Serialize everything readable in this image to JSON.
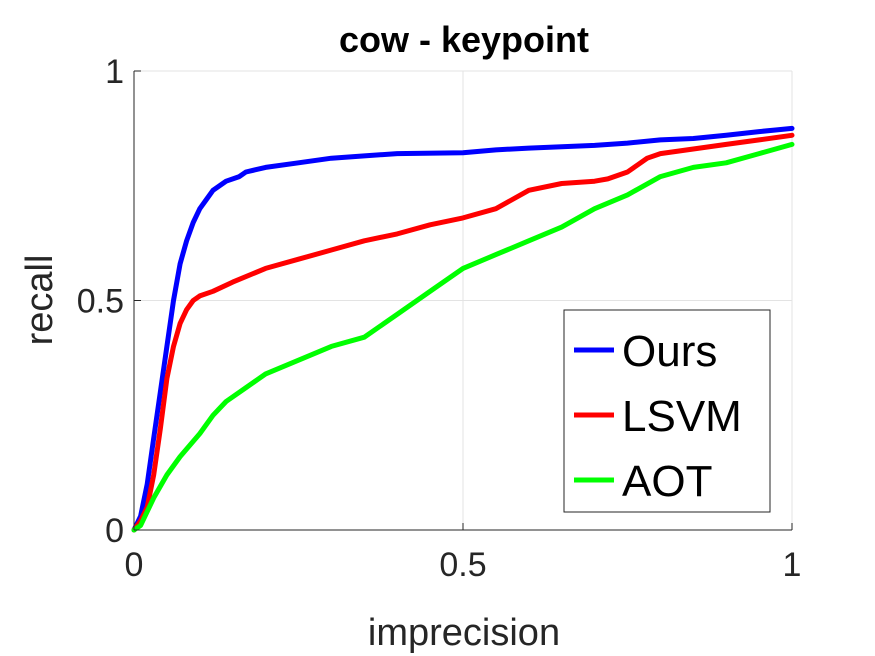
{
  "chart_data": {
    "type": "line",
    "title": "cow - keypoint",
    "xlabel": "imprecision",
    "ylabel": "recall",
    "xlim": [
      0,
      1
    ],
    "ylim": [
      0,
      1
    ],
    "xticks": [
      "0",
      "0.5",
      "1"
    ],
    "yticks": [
      "0",
      "0.5",
      "1"
    ],
    "grid": true,
    "legend_position": "bottom-right",
    "series": [
      {
        "name": "Ours",
        "color": "#0000ff",
        "points": [
          [
            0,
            0
          ],
          [
            0.01,
            0.03
          ],
          [
            0.02,
            0.1
          ],
          [
            0.03,
            0.2
          ],
          [
            0.04,
            0.3
          ],
          [
            0.05,
            0.4
          ],
          [
            0.06,
            0.5
          ],
          [
            0.07,
            0.58
          ],
          [
            0.08,
            0.63
          ],
          [
            0.09,
            0.67
          ],
          [
            0.1,
            0.7
          ],
          [
            0.11,
            0.72
          ],
          [
            0.12,
            0.74
          ],
          [
            0.14,
            0.76
          ],
          [
            0.16,
            0.77
          ],
          [
            0.17,
            0.78
          ],
          [
            0.2,
            0.79
          ],
          [
            0.25,
            0.8
          ],
          [
            0.3,
            0.81
          ],
          [
            0.35,
            0.815
          ],
          [
            0.4,
            0.82
          ],
          [
            0.5,
            0.822
          ],
          [
            0.55,
            0.828
          ],
          [
            0.6,
            0.832
          ],
          [
            0.7,
            0.838
          ],
          [
            0.75,
            0.843
          ],
          [
            0.8,
            0.85
          ],
          [
            0.85,
            0.853
          ],
          [
            0.9,
            0.86
          ],
          [
            0.95,
            0.868
          ],
          [
            1.0,
            0.875
          ]
        ]
      },
      {
        "name": "LSVM",
        "color": "#ff0000",
        "points": [
          [
            0,
            0
          ],
          [
            0.01,
            0.02
          ],
          [
            0.02,
            0.05
          ],
          [
            0.03,
            0.12
          ],
          [
            0.04,
            0.22
          ],
          [
            0.05,
            0.33
          ],
          [
            0.06,
            0.4
          ],
          [
            0.07,
            0.45
          ],
          [
            0.08,
            0.48
          ],
          [
            0.09,
            0.5
          ],
          [
            0.1,
            0.51
          ],
          [
            0.12,
            0.52
          ],
          [
            0.15,
            0.54
          ],
          [
            0.2,
            0.57
          ],
          [
            0.25,
            0.59
          ],
          [
            0.3,
            0.61
          ],
          [
            0.35,
            0.63
          ],
          [
            0.4,
            0.645
          ],
          [
            0.45,
            0.665
          ],
          [
            0.5,
            0.68
          ],
          [
            0.55,
            0.7
          ],
          [
            0.6,
            0.74
          ],
          [
            0.65,
            0.755
          ],
          [
            0.7,
            0.76
          ],
          [
            0.72,
            0.765
          ],
          [
            0.75,
            0.78
          ],
          [
            0.78,
            0.81
          ],
          [
            0.8,
            0.82
          ],
          [
            0.85,
            0.83
          ],
          [
            0.9,
            0.84
          ],
          [
            0.95,
            0.85
          ],
          [
            1.0,
            0.86
          ]
        ]
      },
      {
        "name": "AOT",
        "color": "#00ff00",
        "points": [
          [
            0,
            0
          ],
          [
            0.01,
            0.01
          ],
          [
            0.02,
            0.04
          ],
          [
            0.03,
            0.07
          ],
          [
            0.05,
            0.12
          ],
          [
            0.07,
            0.16
          ],
          [
            0.1,
            0.21
          ],
          [
            0.12,
            0.25
          ],
          [
            0.14,
            0.28
          ],
          [
            0.17,
            0.31
          ],
          [
            0.2,
            0.34
          ],
          [
            0.25,
            0.37
          ],
          [
            0.3,
            0.4
          ],
          [
            0.35,
            0.42
          ],
          [
            0.4,
            0.47
          ],
          [
            0.45,
            0.52
          ],
          [
            0.5,
            0.57
          ],
          [
            0.55,
            0.6
          ],
          [
            0.6,
            0.63
          ],
          [
            0.65,
            0.66
          ],
          [
            0.7,
            0.7
          ],
          [
            0.75,
            0.73
          ],
          [
            0.8,
            0.77
          ],
          [
            0.85,
            0.79
          ],
          [
            0.9,
            0.8
          ],
          [
            0.95,
            0.82
          ],
          [
            1.0,
            0.84
          ]
        ]
      }
    ]
  }
}
